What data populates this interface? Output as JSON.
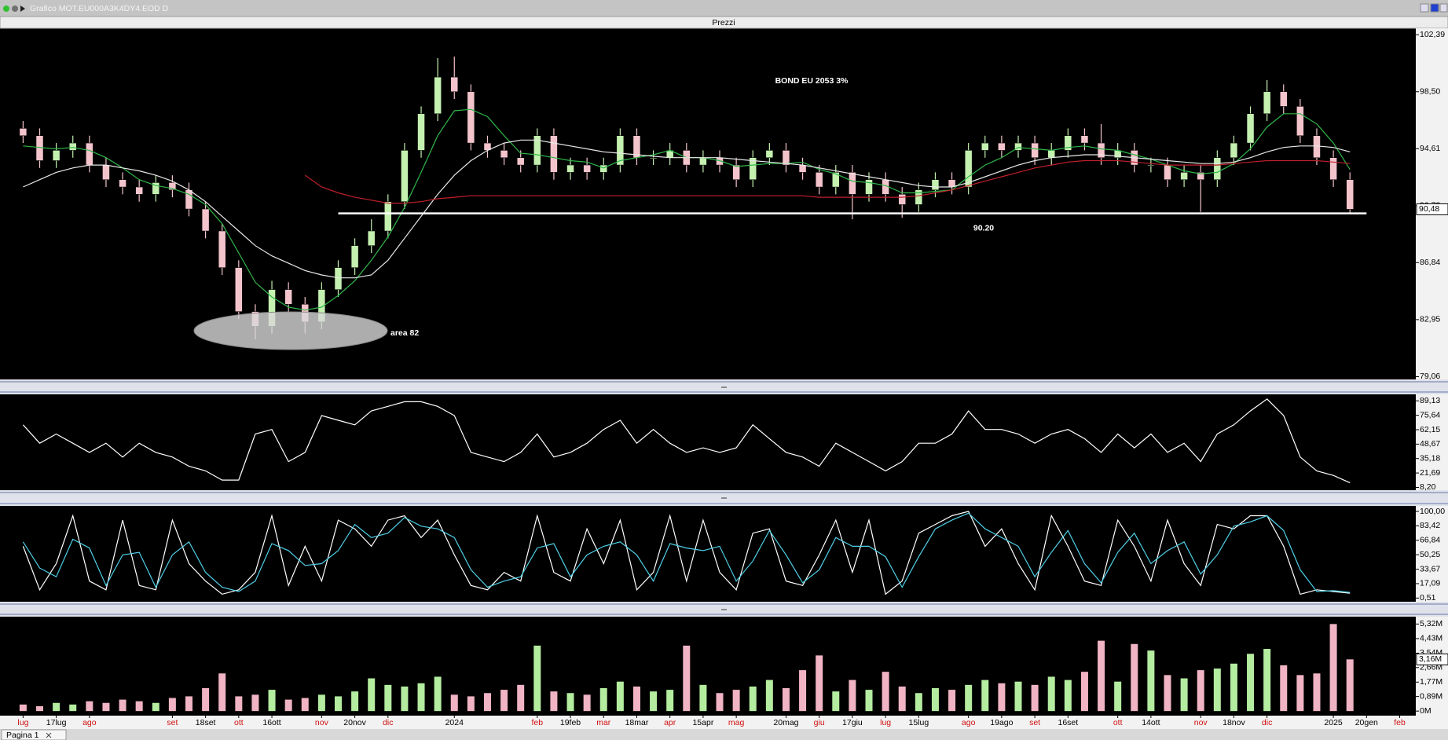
{
  "window": {
    "title": "Grafico MOT.EU000A3K4DY4.EOD D",
    "tab": "Pagina 1"
  },
  "chart_data": [
    {
      "type": "candlestick",
      "title": "Prezzi",
      "annotation": "BOND EU 2053 3%",
      "area_label": "area 82",
      "level": {
        "value": 90.2,
        "label": "90.20"
      },
      "up_color": "#c4f0b0",
      "down_color": "#f4c4cc",
      "ylim": [
        78.87,
        102.83
      ],
      "yticks": [
        {
          "value": 102.39,
          "label": "102,39"
        },
        {
          "value": 98.5,
          "label": "98,50"
        },
        {
          "value": 94.61,
          "label": "94,61"
        },
        {
          "value": 90.72,
          "label": "90,72"
        },
        {
          "value": 86.84,
          "label": "86,84"
        },
        {
          "value": 82.95,
          "label": "82,95"
        },
        {
          "value": 79.06,
          "label": "79,06"
        }
      ],
      "current_label": {
        "value": 90.48,
        "label": "90,48"
      },
      "open": [
        96.0,
        95.5,
        93.8,
        94.5,
        95.0,
        93.5,
        92.5,
        92.0,
        91.5,
        92.3,
        91.8,
        90.5,
        89.0,
        86.5,
        83.5,
        82.5,
        85.0,
        84.0,
        82.8,
        85.0,
        86.5,
        88.0,
        89.0,
        91.0,
        94.5,
        97.0,
        99.5,
        98.5,
        95.0,
        94.5,
        94.0,
        93.5,
        95.5,
        93.0,
        93.5,
        93.0,
        93.5,
        95.5,
        94.0,
        94.0,
        94.5,
        93.5,
        94.0,
        93.5,
        92.5,
        94.0,
        94.5,
        93.5,
        93.0,
        92.0,
        93.0,
        91.5,
        92.5,
        91.5,
        90.8,
        91.8,
        92.5,
        92.0,
        94.5,
        95.0,
        94.5,
        95.0,
        94.0,
        94.5,
        95.5,
        95.0,
        94.0,
        94.5,
        93.5,
        93.5,
        92.5,
        93.0,
        92.5,
        94.0,
        95.0,
        97.0,
        98.5,
        97.5,
        95.5,
        94.0,
        92.5,
        null,
        null,
        null
      ],
      "high": [
        96.5,
        96.0,
        95.0,
        95.5,
        95.5,
        94.0,
        93.0,
        92.5,
        92.8,
        92.8,
        92.3,
        91.0,
        89.5,
        87.0,
        84.0,
        85.6,
        85.5,
        84.5,
        85.5,
        87.0,
        88.5,
        89.8,
        91.5,
        95.0,
        97.5,
        100.8,
        100.9,
        99.0,
        95.5,
        95.0,
        94.5,
        96.0,
        96.0,
        94.0,
        94.0,
        94.0,
        96.0,
        96.0,
        94.5,
        95.0,
        95.0,
        94.5,
        94.5,
        94.0,
        94.5,
        95.0,
        95.0,
        94.0,
        93.5,
        93.5,
        93.5,
        93.0,
        93.0,
        92.0,
        92.3,
        93.0,
        93.0,
        95.0,
        95.5,
        95.5,
        95.5,
        95.5,
        95.0,
        96.0,
        96.0,
        96.3,
        95.0,
        95.0,
        94.0,
        94.0,
        93.5,
        93.5,
        94.5,
        95.5,
        97.5,
        99.3,
        99.0,
        98.0,
        96.0,
        94.5,
        93.0,
        null,
        null,
        null
      ],
      "low": [
        95.0,
        93.3,
        93.3,
        94.0,
        93.0,
        92.0,
        91.5,
        91.0,
        91.0,
        91.3,
        90.0,
        88.5,
        86.0,
        83.0,
        81.6,
        82.0,
        83.5,
        82.0,
        82.3,
        84.5,
        86.0,
        87.5,
        88.5,
        90.5,
        94.0,
        96.5,
        98.0,
        94.5,
        94.0,
        93.5,
        93.0,
        93.0,
        92.5,
        92.5,
        92.5,
        92.5,
        93.0,
        93.5,
        93.5,
        93.5,
        93.0,
        93.0,
        93.0,
        92.0,
        92.0,
        93.5,
        93.0,
        92.5,
        91.5,
        91.5,
        89.8,
        91.0,
        91.0,
        89.9,
        90.3,
        91.3,
        91.5,
        91.5,
        94.0,
        94.0,
        94.0,
        93.5,
        93.5,
        94.0,
        94.5,
        93.5,
        93.5,
        93.0,
        93.0,
        92.0,
        92.0,
        90.3,
        92.0,
        93.5,
        94.5,
        96.5,
        97.0,
        95.0,
        93.5,
        92.0,
        90.2,
        null,
        null,
        null
      ],
      "close": [
        95.5,
        93.8,
        94.5,
        95.0,
        93.5,
        92.5,
        92.0,
        91.5,
        92.3,
        91.8,
        90.5,
        89.0,
        86.5,
        83.5,
        82.5,
        85.0,
        84.0,
        82.8,
        85.0,
        86.5,
        88.0,
        89.0,
        91.0,
        94.5,
        97.0,
        99.5,
        98.5,
        95.0,
        94.5,
        94.0,
        93.5,
        95.5,
        93.0,
        93.5,
        93.0,
        93.5,
        95.5,
        94.0,
        94.0,
        94.5,
        93.5,
        94.0,
        93.5,
        92.5,
        94.0,
        94.5,
        93.5,
        93.0,
        92.0,
        93.0,
        91.5,
        92.5,
        91.5,
        90.8,
        91.8,
        92.5,
        92.0,
        94.5,
        95.0,
        94.5,
        95.0,
        94.0,
        94.5,
        95.5,
        95.0,
        94.0,
        94.5,
        93.5,
        93.5,
        92.5,
        93.0,
        92.5,
        94.0,
        95.0,
        97.0,
        98.5,
        97.5,
        95.5,
        94.0,
        92.5,
        90.48,
        null,
        null,
        null
      ],
      "series": [
        {
          "color": "#2fb84a",
          "values": [
            94.8,
            94.7,
            94.6,
            94.7,
            94.5,
            94.0,
            93.3,
            92.5,
            92.1,
            91.9,
            91.5,
            90.8,
            89.5,
            87.5,
            85.5,
            84.5,
            83.8,
            83.6,
            83.8,
            84.6,
            85.6,
            87.0,
            88.6,
            90.6,
            93.0,
            95.5,
            97.2,
            97.3,
            96.8,
            95.5,
            94.3,
            94.2,
            94.0,
            93.8,
            93.7,
            93.3,
            93.8,
            94.0,
            94.2,
            94.5,
            94.0,
            94.0,
            93.8,
            93.4,
            93.5,
            93.6,
            93.6,
            93.7,
            93.2,
            92.9,
            92.4,
            92.3,
            92.1,
            91.6,
            91.6,
            91.7,
            91.8,
            92.7,
            93.5,
            94.0,
            94.7,
            94.6,
            94.5,
            94.7,
            94.8,
            94.6,
            94.5,
            94.2,
            93.9,
            93.5,
            93.1,
            92.9,
            93.0,
            93.6,
            94.6,
            96.1,
            97.0,
            97.0,
            96.3,
            95.0,
            93.2,
            null,
            null,
            null
          ]
        },
        {
          "color": "#e8e8e8",
          "values": [
            92.0,
            92.5,
            93.0,
            93.3,
            93.5,
            93.5,
            93.3,
            93.1,
            92.8,
            92.4,
            91.8,
            91.0,
            90.0,
            89.0,
            88.0,
            87.3,
            86.8,
            86.3,
            86.0,
            85.8,
            85.8,
            86.0,
            87.0,
            88.5,
            90.0,
            91.5,
            92.8,
            93.8,
            94.5,
            95.0,
            95.2,
            95.2,
            95.0,
            94.8,
            94.6,
            94.4,
            94.3,
            94.2,
            94.1,
            94.0,
            94.0,
            94.0,
            94.0,
            93.9,
            93.8,
            93.7,
            93.6,
            93.5,
            93.3,
            93.1,
            92.9,
            92.7,
            92.5,
            92.3,
            92.1,
            92.0,
            92.0,
            92.3,
            92.7,
            93.1,
            93.5,
            93.8,
            94.0,
            94.1,
            94.2,
            94.2,
            94.1,
            94.0,
            93.9,
            93.8,
            93.7,
            93.6,
            93.6,
            93.7,
            94.0,
            94.4,
            94.7,
            94.8,
            94.8,
            94.7,
            94.4,
            null,
            null,
            null
          ]
        },
        {
          "color": "#c0202a",
          "values": [
            null,
            null,
            null,
            null,
            null,
            null,
            null,
            null,
            null,
            null,
            null,
            null,
            null,
            null,
            null,
            null,
            null,
            92.8,
            92.0,
            91.6,
            91.3,
            91.1,
            90.9,
            90.9,
            91.0,
            91.2,
            91.3,
            91.4,
            91.4,
            91.4,
            91.4,
            91.4,
            91.4,
            91.4,
            91.4,
            91.4,
            91.4,
            91.4,
            91.4,
            91.4,
            91.4,
            91.4,
            91.4,
            91.4,
            91.4,
            91.4,
            91.4,
            91.4,
            91.3,
            91.3,
            91.3,
            91.3,
            91.3,
            91.3,
            91.4,
            91.6,
            91.8,
            92.1,
            92.4,
            92.7,
            93.0,
            93.3,
            93.5,
            93.7,
            93.8,
            93.8,
            93.8,
            93.7,
            93.6,
            93.5,
            93.5,
            93.5,
            93.5,
            93.6,
            93.7,
            93.8,
            93.8,
            93.8,
            93.8,
            93.7,
            93.6,
            null,
            null,
            null
          ]
        }
      ]
    },
    {
      "type": "line",
      "ylim": [
        5.6,
        95.2
      ],
      "yticks": [
        {
          "value": 89.13,
          "label": "89,13"
        },
        {
          "value": 75.64,
          "label": "75,64"
        },
        {
          "value": 62.15,
          "label": "62,15"
        },
        {
          "value": 48.67,
          "label": "48,67"
        },
        {
          "value": 35.18,
          "label": "35,18"
        },
        {
          "value": 21.69,
          "label": "21,69"
        },
        {
          "value": 8.2,
          "label": "8,20"
        }
      ],
      "series": [
        {
          "color": "#ffffff",
          "values": [
            66.7,
            49.5,
            58.1,
            49.5,
            40.9,
            49.5,
            36.6,
            49.5,
            40.9,
            36.6,
            28.0,
            23.7,
            15.1,
            15.1,
            58.1,
            62.4,
            32.3,
            40.9,
            75.4,
            71.0,
            66.7,
            79.7,
            84.0,
            88.3,
            88.3,
            84.0,
            75.4,
            40.9,
            36.6,
            32.3,
            40.9,
            58.1,
            36.6,
            40.9,
            49.5,
            62.4,
            71.0,
            49.5,
            62.4,
            49.5,
            40.9,
            45.2,
            40.9,
            45.2,
            66.7,
            53.8,
            40.9,
            36.6,
            28.0,
            49.5,
            40.9,
            32.3,
            23.7,
            32.3,
            49.5,
            49.5,
            58.1,
            79.7,
            62.4,
            62.4,
            58.1,
            49.5,
            58.1,
            62.4,
            53.8,
            40.9,
            58.1,
            45.2,
            58.1,
            40.9,
            49.5,
            32.3,
            58.1,
            66.7,
            79.7,
            90.9,
            75.4,
            36.6,
            23.7,
            19.4,
            12.5,
            null,
            null,
            null
          ]
        }
      ]
    },
    {
      "type": "line",
      "ylim": [
        -3.7,
        106.3
      ],
      "yticks": [
        {
          "value": 100,
          "label": "100,00"
        },
        {
          "value": 83.42,
          "label": "83,42"
        },
        {
          "value": 66.84,
          "label": "66,84"
        },
        {
          "value": 50.25,
          "label": "50,25"
        },
        {
          "value": 33.67,
          "label": "33,67"
        },
        {
          "value": 17.09,
          "label": "17,09"
        },
        {
          "value": 0.51,
          "label": "0,51"
        }
      ],
      "series": [
        {
          "color": "#ffffff",
          "values": [
            60,
            10,
            40,
            95,
            20,
            10,
            90,
            15,
            10,
            90,
            40,
            20,
            5,
            10,
            30,
            95,
            15,
            60,
            20,
            90,
            80,
            60,
            90,
            95,
            70,
            90,
            50,
            15,
            10,
            30,
            20,
            95,
            30,
            20,
            80,
            40,
            90,
            10,
            30,
            95,
            20,
            90,
            30,
            10,
            75,
            80,
            20,
            15,
            50,
            90,
            30,
            90,
            5,
            20,
            75,
            85,
            95,
            100,
            60,
            80,
            40,
            10,
            95,
            60,
            20,
            15,
            90,
            60,
            20,
            90,
            40,
            15,
            85,
            80,
            95,
            95,
            60,
            5,
            10,
            8,
            6,
            null,
            null,
            null
          ]
        },
        {
          "color": "#4fd0e8",
          "values": [
            65,
            35,
            25,
            68,
            58,
            15,
            50,
            53,
            13,
            50,
            65,
            30,
            13,
            8,
            20,
            63,
            55,
            38,
            40,
            55,
            85,
            70,
            75,
            93,
            83,
            80,
            70,
            33,
            13,
            20,
            25,
            58,
            63,
            25,
            50,
            60,
            65,
            50,
            20,
            63,
            58,
            55,
            60,
            20,
            43,
            78,
            50,
            18,
            33,
            70,
            60,
            60,
            48,
            13,
            48,
            80,
            90,
            98,
            80,
            70,
            60,
            25,
            53,
            78,
            40,
            18,
            53,
            75,
            40,
            55,
            65,
            28,
            50,
            83,
            88,
            95,
            78,
            33,
            8,
            9,
            7,
            null,
            null,
            null
          ]
        }
      ]
    },
    {
      "type": "bar",
      "ylim": [
        -0.28,
        5.77
      ],
      "yticks": [
        {
          "value": 5.32,
          "label": "5,32M"
        },
        {
          "value": 4.43,
          "label": "4,43M"
        },
        {
          "value": 3.54,
          "label": "3,54M"
        },
        {
          "value": 2.66,
          "label": "2,66M"
        },
        {
          "value": 1.77,
          "label": "1,77M"
        },
        {
          "value": 0.89,
          "label": "0,89M"
        },
        {
          "value": 0,
          "label": "0M"
        }
      ],
      "current_label": {
        "value": 3.16,
        "label": "3,16M"
      },
      "up_color": "#b4eca0",
      "down_color": "#f0b4c4",
      "month_color": "#d01010",
      "label_color": "#000000",
      "values": [
        0.4,
        0.3,
        0.5,
        0.4,
        0.6,
        0.5,
        0.7,
        0.6,
        0.5,
        0.8,
        0.9,
        1.4,
        2.3,
        0.9,
        1.0,
        1.3,
        0.7,
        0.8,
        1.0,
        0.9,
        1.2,
        2.0,
        1.6,
        1.5,
        1.7,
        2.1,
        1.0,
        0.9,
        1.1,
        1.3,
        1.6,
        4.0,
        1.2,
        1.1,
        1.0,
        1.4,
        1.8,
        1.5,
        1.2,
        1.3,
        4.0,
        1.6,
        1.1,
        1.3,
        1.5,
        1.9,
        1.4,
        2.5,
        3.4,
        1.2,
        1.9,
        1.3,
        2.4,
        1.5,
        1.1,
        1.4,
        1.3,
        1.6,
        1.9,
        1.7,
        1.8,
        1.6,
        2.1,
        1.9,
        2.4,
        4.3,
        1.8,
        4.1,
        3.7,
        2.2,
        2.0,
        2.5,
        2.6,
        2.9,
        3.5,
        3.8,
        2.8,
        2.2,
        2.3,
        5.32,
        3.16,
        null,
        null,
        null
      ],
      "categories": [
        "lug",
        null,
        "17lug",
        null,
        "ago",
        null,
        null,
        null,
        null,
        "set",
        null,
        "18set",
        null,
        "ott",
        null,
        "16ott",
        null,
        null,
        "nov",
        null,
        "20nov",
        null,
        "dic",
        null,
        null,
        null,
        "2024",
        null,
        null,
        null,
        null,
        "feb",
        null,
        "19feb",
        null,
        "mar",
        null,
        "18mar",
        null,
        "apr",
        null,
        "15apr",
        null,
        "mag",
        null,
        null,
        "20mag",
        null,
        "giu",
        null,
        "17giu",
        null,
        "lug",
        null,
        "15lug",
        null,
        null,
        "ago",
        null,
        "19ago",
        null,
        "set",
        null,
        "16set",
        null,
        null,
        "ott",
        null,
        "14ott",
        null,
        null,
        "nov",
        null,
        "18nov",
        null,
        "dic",
        null,
        null,
        null,
        "2025",
        null,
        "20gen",
        null,
        "feb"
      ]
    }
  ]
}
